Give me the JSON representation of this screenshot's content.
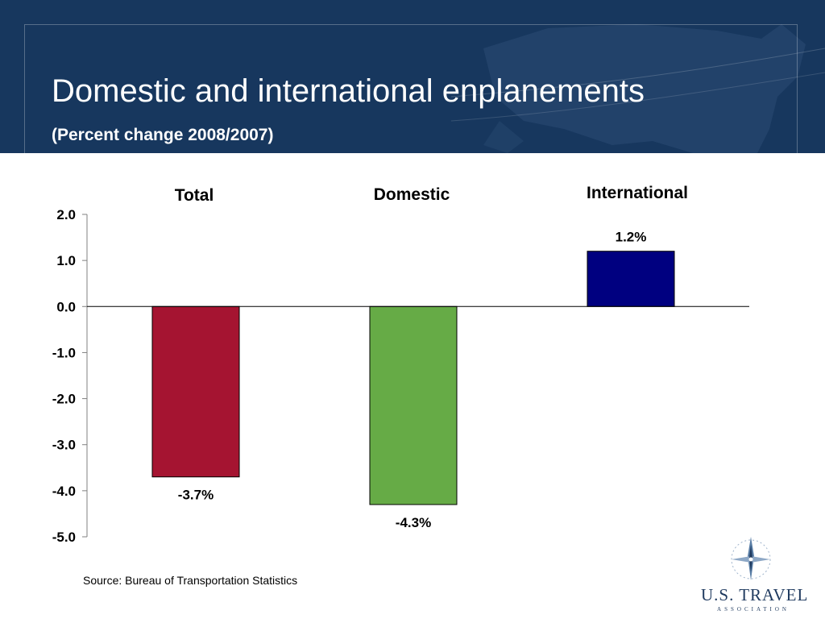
{
  "header": {
    "title": "Domestic and international enplanements",
    "subtitle": "(Percent change 2008/2007)"
  },
  "colors": {
    "header_bg": "#17375e",
    "total_bar": "#a51431",
    "domestic_bar": "#66ab46",
    "international_bar": "#000080"
  },
  "chart_data": {
    "type": "bar",
    "title": "",
    "xlabel": "",
    "ylabel": "",
    "categories": [
      "Total",
      "Domestic",
      "International"
    ],
    "values": [
      -3.7,
      -4.3,
      1.2
    ],
    "data_labels": [
      "-3.7%",
      "-4.3%",
      "1.2%"
    ],
    "bar_colors": [
      "#a51431",
      "#66ab46",
      "#000080"
    ],
    "ylim": [
      -5.0,
      2.0
    ],
    "yticks": [
      2.0,
      1.0,
      0.0,
      -1.0,
      -2.0,
      -3.0,
      -4.0,
      -5.0
    ],
    "ytick_labels": [
      "2.0",
      "1.0",
      "0.0",
      "-1.0",
      "-2.0",
      "-3.0",
      "-4.0",
      "-5.0"
    ],
    "grid": false,
    "legend": "none"
  },
  "footer": {
    "source": "Source:  Bureau of  Transportation Statistics"
  },
  "logo": {
    "name": "U.S. TRAVEL",
    "tagline": "ASSOCIATION",
    "icon": "compass-star-icon"
  }
}
